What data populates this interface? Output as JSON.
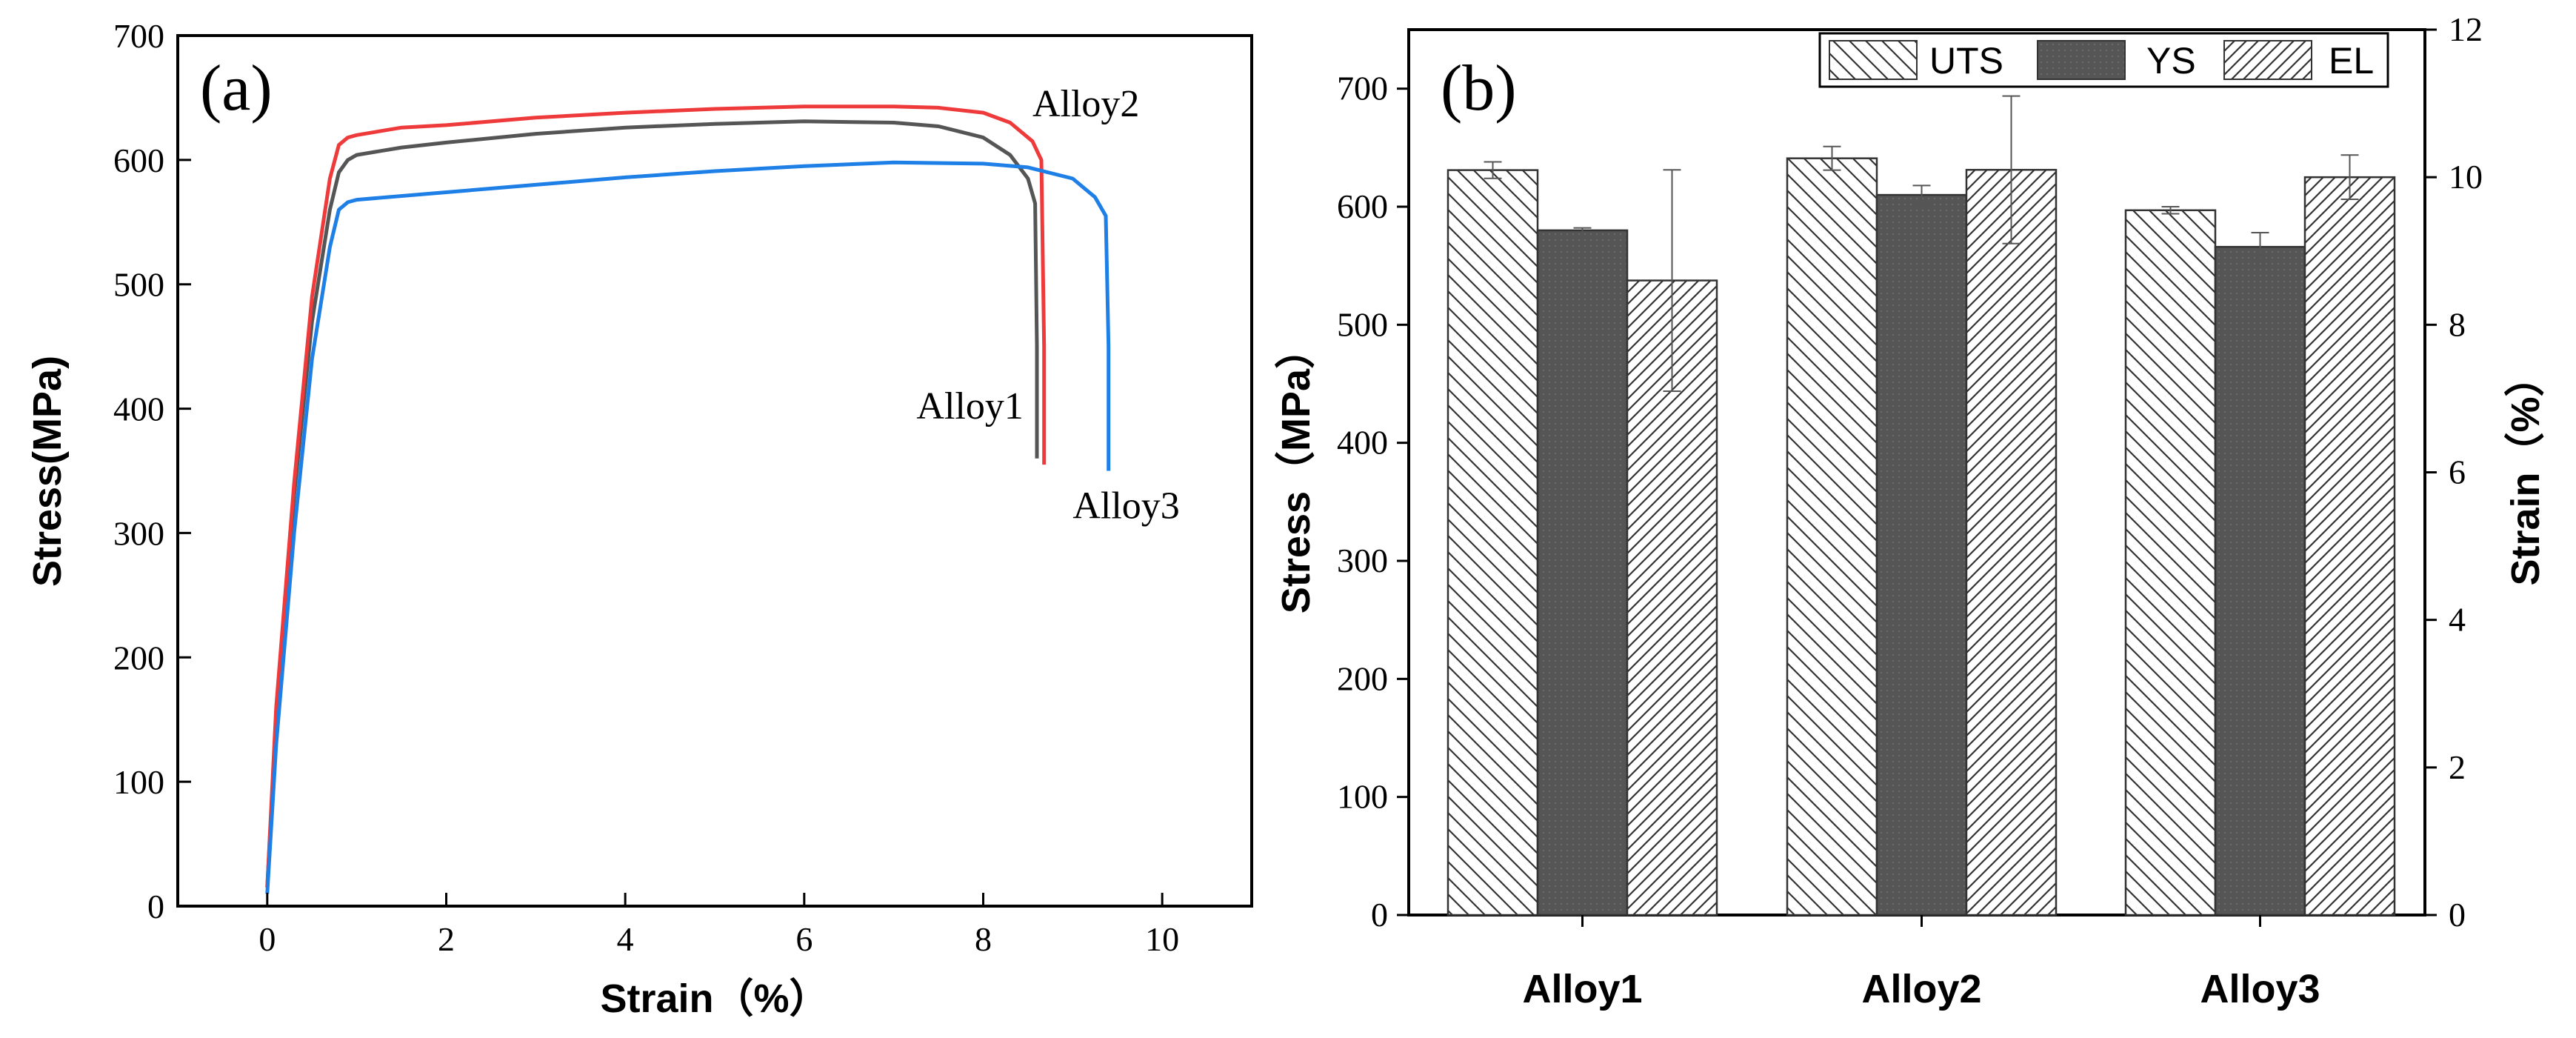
{
  "chart_data": [
    {
      "type": "line",
      "panel_label": "(a)",
      "xlabel": "Strain（%）",
      "ylabel": "Stress(MPa)",
      "xlim": [
        -1,
        11
      ],
      "ylim": [
        0,
        700
      ],
      "xticks": [
        0,
        2,
        4,
        6,
        8,
        10
      ],
      "yticks": [
        0,
        100,
        200,
        300,
        400,
        500,
        600,
        700
      ],
      "series": [
        {
          "name": "Alloy1",
          "color": "#555555",
          "label_at": [
            8.2,
            365
          ],
          "x": [
            0,
            0.1,
            0.3,
            0.5,
            0.7,
            0.8,
            0.9,
            1.0,
            1.5,
            2.0,
            3.0,
            4.0,
            5.0,
            6.0,
            7.0,
            7.5,
            8.0,
            8.3,
            8.5,
            8.58,
            8.6,
            8.6
          ],
          "y": [
            15,
            150,
            330,
            470,
            560,
            590,
            600,
            604,
            610,
            614,
            621,
            626,
            629,
            631,
            630,
            627,
            618,
            604,
            585,
            565,
            450,
            360
          ]
        },
        {
          "name": "Alloy2",
          "color": "#ee3a3a",
          "label_at": [
            8.55,
            635
          ],
          "x": [
            0,
            0.1,
            0.3,
            0.5,
            0.7,
            0.8,
            0.9,
            1.0,
            1.5,
            2.0,
            3.0,
            4.0,
            5.0,
            6.0,
            7.0,
            7.5,
            8.0,
            8.3,
            8.55,
            8.65,
            8.68,
            8.68
          ],
          "y": [
            15,
            160,
            340,
            490,
            585,
            612,
            618,
            620,
            626,
            628,
            634,
            638,
            641,
            643,
            643,
            642,
            638,
            630,
            615,
            600,
            450,
            355
          ]
        },
        {
          "name": "Alloy3",
          "color": "#1e7fe6",
          "label_at": [
            9.0,
            312
          ],
          "x": [
            0,
            0.1,
            0.3,
            0.5,
            0.7,
            0.8,
            0.9,
            1.0,
            2.0,
            3.0,
            4.0,
            5.0,
            6.0,
            7.0,
            8.0,
            8.5,
            9.0,
            9.25,
            9.37,
            9.4,
            9.4
          ],
          "y": [
            10,
            130,
            300,
            440,
            530,
            560,
            566,
            568,
            574,
            580,
            586,
            591,
            595,
            598,
            597,
            594,
            585,
            570,
            555,
            450,
            350
          ]
        }
      ]
    },
    {
      "type": "bar",
      "panel_label": "(b)",
      "categories": [
        "Alloy1",
        "Alloy2",
        "Alloy3"
      ],
      "ylabel": "Stress（MPa）",
      "y2label": "Strain（%）",
      "ylim": [
        0,
        750
      ],
      "y2lim": [
        0,
        12
      ],
      "yticks": [
        0,
        100,
        200,
        300,
        400,
        500,
        600,
        700
      ],
      "y2ticks": [
        0,
        2,
        4,
        6,
        8,
        10,
        12
      ],
      "legend_position": "top-right",
      "series": [
        {
          "name": "UTS",
          "axis": "left",
          "pattern": "backslash-hatch",
          "values": [
            631,
            641,
            597
          ],
          "errors": [
            7,
            10,
            3
          ]
        },
        {
          "name": "YS",
          "axis": "left",
          "pattern": "solid-dark",
          "values": [
            580,
            610,
            566
          ],
          "errors": [
            2,
            8,
            12
          ]
        },
        {
          "name": "EL",
          "axis": "right",
          "pattern": "slash-hatch",
          "values": [
            8.6,
            10.1,
            10.0
          ],
          "errors": [
            1.5,
            1.0,
            0.3
          ]
        }
      ]
    }
  ]
}
